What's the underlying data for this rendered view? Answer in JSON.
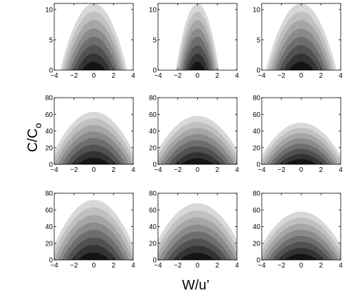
{
  "figure": {
    "xlabel": "W/u’",
    "ylabel": "C/C",
    "ylabel_sub": "o"
  },
  "chart_data": [
    {
      "type": "heatmap",
      "row": 1,
      "col": 1,
      "xlim": [
        -4,
        4
      ],
      "ylim": [
        0,
        11
      ],
      "xticks": [
        "−4",
        "−2",
        "0",
        "2",
        "4"
      ],
      "yticks": [
        "0",
        "5",
        "10"
      ],
      "peak": 11,
      "halfwidth": 3.4
    },
    {
      "type": "heatmap",
      "row": 1,
      "col": 2,
      "xlim": [
        -4,
        4
      ],
      "ylim": [
        0,
        11
      ],
      "xticks": [
        "−4",
        "−2",
        "0",
        "2",
        "4"
      ],
      "yticks": [
        "0",
        "5",
        "10"
      ],
      "peak": 11,
      "halfwidth": 2.2
    },
    {
      "type": "heatmap",
      "row": 1,
      "col": 3,
      "xlim": [
        -4,
        4
      ],
      "ylim": [
        0,
        11
      ],
      "xticks": [
        "−4",
        "−2",
        "0",
        "2",
        "4"
      ],
      "yticks": [
        "0",
        "5",
        "10"
      ],
      "peak": 11,
      "halfwidth": 3.6
    },
    {
      "type": "heatmap",
      "row": 2,
      "col": 1,
      "xlim": [
        -4,
        4
      ],
      "ylim": [
        0,
        80
      ],
      "xticks": [
        "−4",
        "−2",
        "0",
        "2",
        "4"
      ],
      "yticks": [
        "0",
        "20",
        "40",
        "60",
        "80"
      ],
      "peak": 63,
      "halfwidth": 4.6
    },
    {
      "type": "heatmap",
      "row": 2,
      "col": 2,
      "xlim": [
        -4,
        4
      ],
      "ylim": [
        0,
        80
      ],
      "xticks": [
        "−4",
        "−2",
        "0",
        "2",
        "4"
      ],
      "yticks": [
        "0",
        "20",
        "40",
        "60",
        "80"
      ],
      "peak": 58,
      "halfwidth": 4.8
    },
    {
      "type": "heatmap",
      "row": 2,
      "col": 3,
      "xlim": [
        -4,
        4
      ],
      "ylim": [
        0,
        80
      ],
      "xticks": [
        "−4",
        "−2",
        "0",
        "2",
        "4"
      ],
      "yticks": [
        "0",
        "20",
        "40",
        "60",
        "80"
      ],
      "peak": 50,
      "halfwidth": 4.5
    },
    {
      "type": "heatmap",
      "row": 3,
      "col": 1,
      "xlim": [
        -4,
        4
      ],
      "ylim": [
        0,
        80
      ],
      "xticks": [
        "−4",
        "−2",
        "0",
        "2",
        "4"
      ],
      "yticks": [
        "0",
        "20",
        "40",
        "60",
        "80"
      ],
      "peak": 72,
      "halfwidth": 4.6
    },
    {
      "type": "heatmap",
      "row": 3,
      "col": 2,
      "xlim": [
        -4,
        4
      ],
      "ylim": [
        0,
        80
      ],
      "xticks": [
        "−4",
        "−2",
        "0",
        "2",
        "4"
      ],
      "yticks": [
        "0",
        "20",
        "40",
        "60",
        "80"
      ],
      "peak": 68,
      "halfwidth": 5.0
    },
    {
      "type": "heatmap",
      "row": 3,
      "col": 3,
      "xlim": [
        -4,
        4
      ],
      "ylim": [
        0,
        80
      ],
      "xticks": [
        "−4",
        "−2",
        "0",
        "2",
        "4"
      ],
      "yticks": [
        "0",
        "20",
        "40",
        "60",
        "80"
      ],
      "peak": 58,
      "halfwidth": 4.8
    }
  ],
  "colors": {
    "bands": [
      "#141414",
      "#333333",
      "#515151",
      "#6e6e6e",
      "#8b8b8b",
      "#a6a6a6",
      "#c0c0c0",
      "#d8d8d8"
    ],
    "axis": "#000000",
    "background": "#ffffff"
  }
}
